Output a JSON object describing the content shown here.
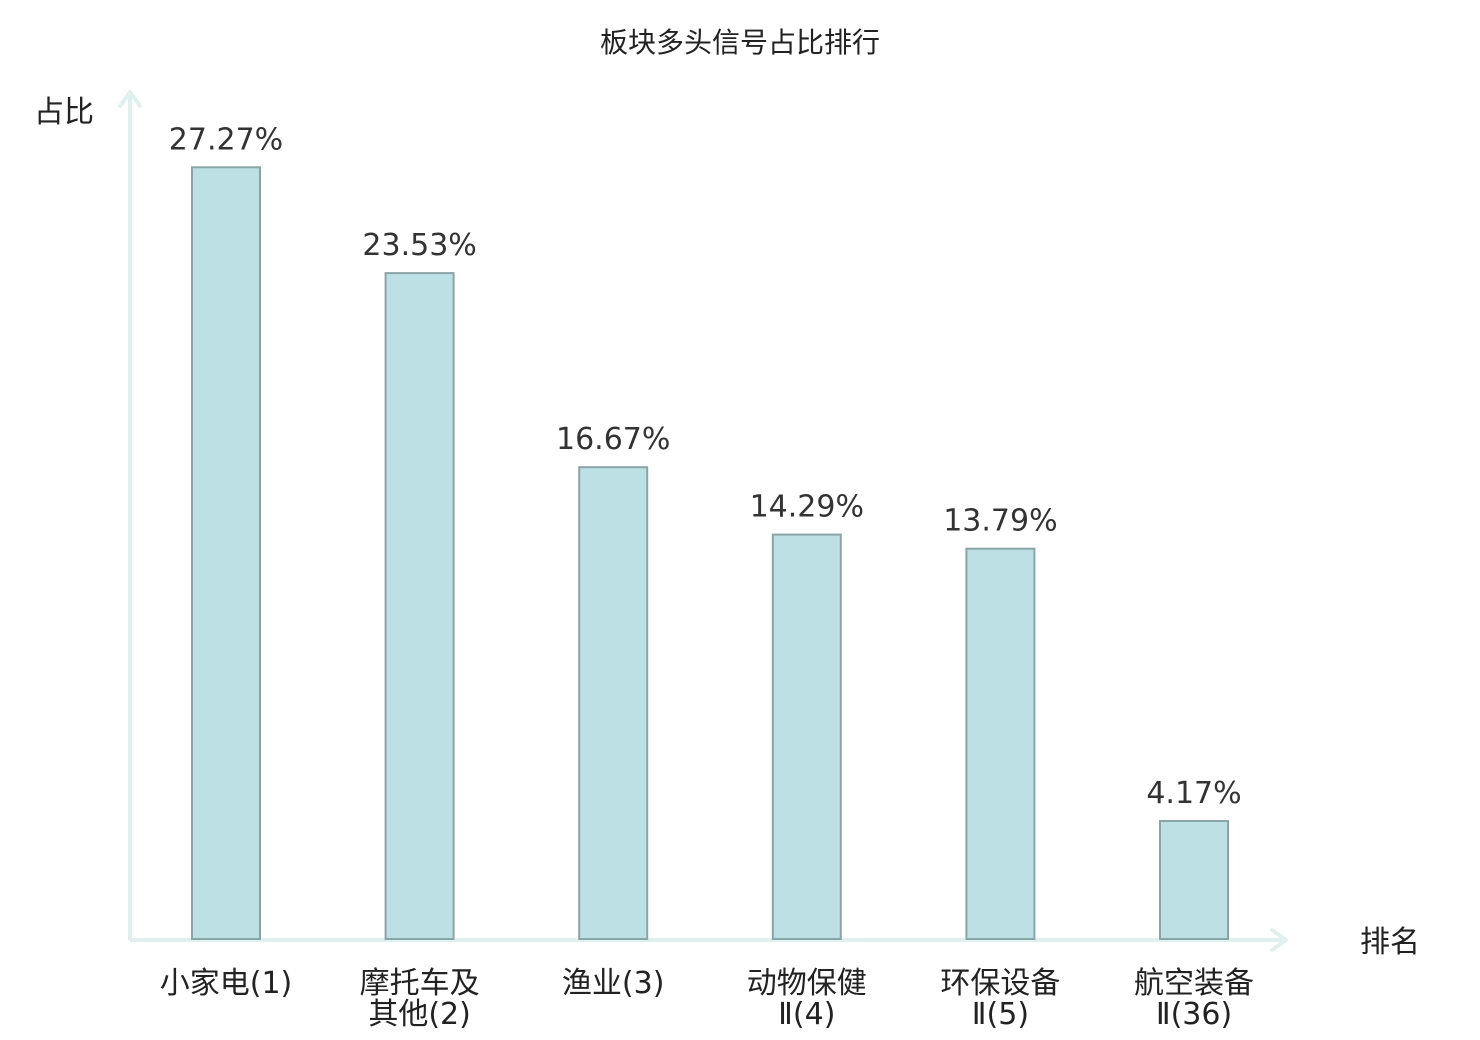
{
  "chart_data": {
    "type": "bar",
    "title": "板块多头信号占比排行",
    "ylabel": "占比",
    "xlabel": "排名",
    "ylim": [
      0,
      30
    ],
    "grid": false,
    "categories": [
      {
        "name_lines": [
          "小家电(1)"
        ],
        "highlight": false
      },
      {
        "name_lines": [
          "摩托车及",
          "其他(2)"
        ],
        "highlight": false
      },
      {
        "name_lines": [
          "渔业(3)"
        ],
        "highlight": false
      },
      {
        "name_lines": [
          "动物保健",
          "Ⅱ(4)"
        ],
        "highlight": false
      },
      {
        "name_lines": [
          "环保设备",
          "Ⅱ(5)"
        ],
        "highlight": false
      },
      {
        "name_lines": [
          "航空装备",
          "Ⅱ(36)"
        ],
        "highlight": true
      }
    ],
    "values": [
      27.27,
      23.53,
      16.67,
      14.29,
      13.79,
      4.17
    ],
    "value_labels": [
      "27.27%",
      "23.53%",
      "16.67%",
      "14.29%",
      "13.79%",
      "4.17%"
    ],
    "colors": {
      "bar_fill": "#bce0e3",
      "bar_stroke": "#8aa5a8",
      "axis": "#dff1ee",
      "text": "#222222",
      "value_text": "#333333",
      "highlight": "#e02020"
    }
  }
}
